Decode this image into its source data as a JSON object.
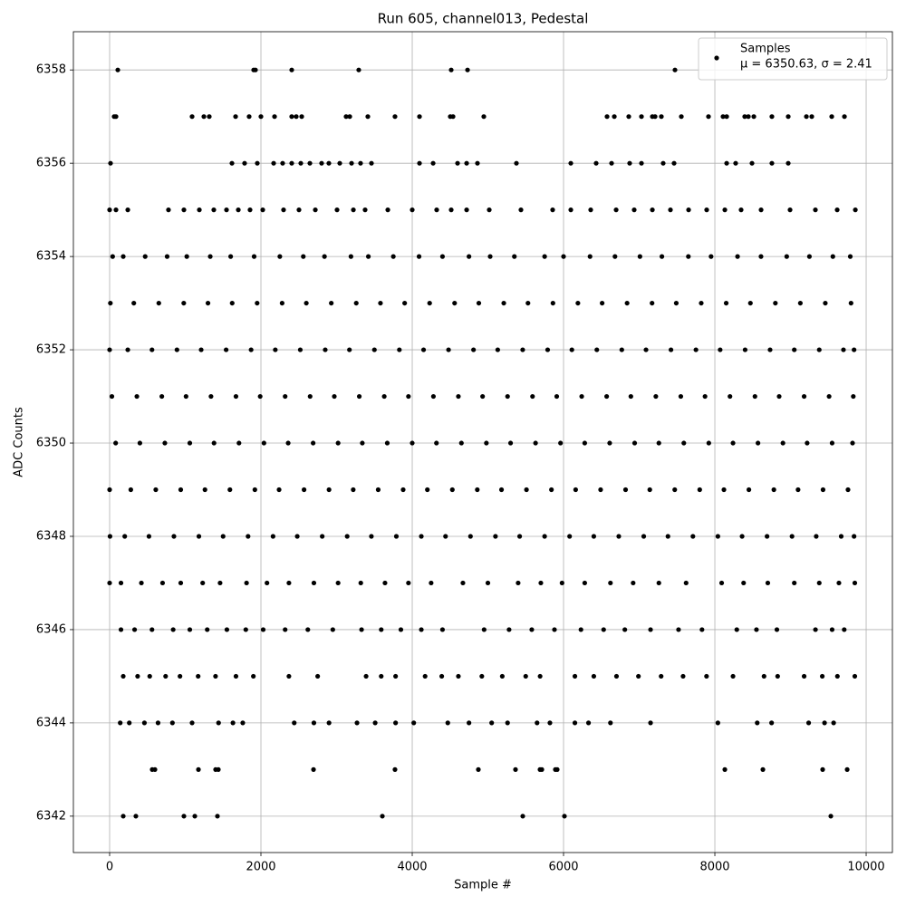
{
  "chart_data": {
    "type": "scatter",
    "title": "Run 605, channel013, Pedestal",
    "xlabel": "Sample #",
    "ylabel": "ADC Counts",
    "xlim": [
      -479,
      10347
    ],
    "ylim": [
      6341.22,
      6358.82
    ],
    "xticks": [
      0,
      2000,
      4000,
      6000,
      8000,
      10000
    ],
    "yticks": [
      6342,
      6344,
      6346,
      6348,
      6350,
      6352,
      6354,
      6356,
      6358
    ],
    "grid": true,
    "legend": "upper right",
    "legend_note": "μ = 6350.63, σ = 2.41",
    "series": [
      {
        "name": "Samples",
        "color": "#000000",
        "x": [
          108,
          1904,
          1928,
          2407,
          3293,
          4515,
          4731,
          7473,
          60,
          84,
          1090,
          1246,
          1317,
          1665,
          1844,
          2000,
          2180,
          2407,
          2467,
          2539,
          3126,
          3174,
          3413,
          3772,
          4096,
          4503,
          4539,
          4946,
          6575,
          6671,
          6862,
          7030,
          7174,
          7210,
          7293,
          7557,
          7916,
          8108,
          8156,
          8395,
          8443,
          8515,
          8754,
          8970,
          9210,
          9281,
          9545,
          9713,
          12,
          1617,
          1784,
          1952,
          2168,
          2287,
          2407,
          2527,
          2647,
          2802,
          2898,
          3042,
          3198,
          3317,
          3461,
          4096,
          4276,
          4599,
          4719,
          4862,
          5377,
          6096,
          6431,
          6635,
          6874,
          7030,
          7317,
          7461,
          8156,
          8275,
          8491,
          8754,
          8970,
          0,
          84,
          240,
          778,
          982,
          1186,
          1377,
          1545,
          1701,
          1856,
          2024,
          2299,
          2503,
          2719,
          3006,
          3222,
          3377,
          3677,
          4000,
          4323,
          4515,
          4719,
          5018,
          5437,
          5856,
          6096,
          6359,
          6695,
          6934,
          7174,
          7413,
          7653,
          7892,
          8132,
          8347,
          8611,
          8994,
          9329,
          9617,
          9857,
          40,
          180,
          470,
          760,
          1020,
          1330,
          1600,
          1910,
          2250,
          2560,
          2840,
          3190,
          3420,
          3750,
          4090,
          4400,
          4750,
          5030,
          5350,
          5750,
          6000,
          6350,
          6680,
          7010,
          7300,
          7650,
          7950,
          8300,
          8610,
          8950,
          9250,
          9560,
          9790,
          10,
          320,
          650,
          980,
          1300,
          1620,
          1950,
          2280,
          2600,
          2930,
          3260,
          3580,
          3900,
          4230,
          4560,
          4880,
          5210,
          5530,
          5860,
          6190,
          6510,
          6840,
          7170,
          7490,
          7820,
          8150,
          8470,
          8800,
          9130,
          9460,
          9800,
          0,
          240,
          560,
          890,
          1210,
          1540,
          1870,
          2190,
          2520,
          2850,
          3170,
          3500,
          3830,
          4150,
          4480,
          4810,
          5130,
          5460,
          5790,
          6110,
          6440,
          6770,
          7090,
          7420,
          7750,
          8070,
          8400,
          8730,
          9050,
          9380,
          9700,
          9840,
          30,
          360,
          690,
          1010,
          1340,
          1670,
          1990,
          2320,
          2650,
          2970,
          3300,
          3630,
          3950,
          4280,
          4610,
          4930,
          5260,
          5590,
          5910,
          6240,
          6570,
          6890,
          7220,
          7550,
          7870,
          8200,
          8530,
          8850,
          9180,
          9510,
          9830,
          80,
          400,
          730,
          1060,
          1380,
          1710,
          2040,
          2360,
          2690,
          3020,
          3340,
          3670,
          4000,
          4320,
          4650,
          4980,
          5300,
          5630,
          5960,
          6280,
          6610,
          6940,
          7260,
          7590,
          7920,
          8240,
          8570,
          8900,
          9220,
          9550,
          9820,
          0,
          280,
          610,
          940,
          1260,
          1590,
          1920,
          2240,
          2570,
          2900,
          3220,
          3550,
          3880,
          4200,
          4530,
          4860,
          5180,
          5510,
          5840,
          6160,
          6490,
          6820,
          7140,
          7470,
          7800,
          8120,
          8450,
          8780,
          9100,
          9430,
          9760,
          5,
          200,
          520,
          850,
          1180,
          1500,
          1830,
          2160,
          2480,
          2810,
          3140,
          3460,
          3790,
          4120,
          4440,
          4770,
          5100,
          5420,
          5750,
          6080,
          6400,
          6730,
          7060,
          7380,
          7710,
          8040,
          8360,
          8690,
          9020,
          9340,
          9670,
          9840,
          0,
          150,
          420,
          700,
          940,
          1230,
          1460,
          1810,
          2080,
          2370,
          2700,
          3020,
          3320,
          3640,
          3950,
          4250,
          4670,
          5000,
          5400,
          5700,
          5980,
          6280,
          6620,
          6920,
          7260,
          7620,
          8090,
          8380,
          8700,
          9050,
          9380,
          9640,
          9850,
          150,
          330,
          560,
          840,
          1060,
          1290,
          1550,
          1800,
          2030,
          2320,
          2620,
          2950,
          3330,
          3590,
          3850,
          4120,
          4400,
          4950,
          5280,
          5580,
          5880,
          6230,
          6530,
          6810,
          7150,
          7520,
          7830,
          8290,
          8550,
          8820,
          9330,
          9550,
          9710,
          180,
          370,
          530,
          740,
          930,
          1170,
          1400,
          1670,
          1900,
          2370,
          2750,
          3390,
          3590,
          3780,
          4170,
          4390,
          4610,
          4920,
          5190,
          5500,
          5690,
          6150,
          6400,
          6700,
          6990,
          7290,
          7580,
          7890,
          8240,
          8650,
          8830,
          9180,
          9420,
          9620,
          9850,
          140,
          260,
          460,
          640,
          830,
          1090,
          1440,
          1630,
          1760,
          2440,
          2700,
          2900,
          3270,
          3510,
          3780,
          4020,
          4470,
          4750,
          5050,
          5260,
          5650,
          5820,
          6150,
          6330,
          6620,
          7150,
          8040,
          8560,
          8750,
          9240,
          9450,
          9570,
          563,
          599,
          1174,
          1401,
          1437,
          2695,
          3772,
          4874,
          5365,
          5689,
          5713,
          5892,
          5916,
          8132,
          8635,
          9425,
          9749,
          180,
          347,
          982,
          1126,
          1425,
          3605,
          5461,
          6012,
          9533
        ],
        "values": [
          6358,
          6358,
          6358,
          6358,
          6358,
          6358,
          6358,
          6358,
          6357,
          6357,
          6357,
          6357,
          6357,
          6357,
          6357,
          6357,
          6357,
          6357,
          6357,
          6357,
          6357,
          6357,
          6357,
          6357,
          6357,
          6357,
          6357,
          6357,
          6357,
          6357,
          6357,
          6357,
          6357,
          6357,
          6357,
          6357,
          6357,
          6357,
          6357,
          6357,
          6357,
          6357,
          6357,
          6357,
          6357,
          6357,
          6357,
          6357,
          6356,
          6356,
          6356,
          6356,
          6356,
          6356,
          6356,
          6356,
          6356,
          6356,
          6356,
          6356,
          6356,
          6356,
          6356,
          6356,
          6356,
          6356,
          6356,
          6356,
          6356,
          6356,
          6356,
          6356,
          6356,
          6356,
          6356,
          6356,
          6356,
          6356,
          6356,
          6356,
          6356,
          6355,
          6355,
          6355,
          6355,
          6355,
          6355,
          6355,
          6355,
          6355,
          6355,
          6355,
          6355,
          6355,
          6355,
          6355,
          6355,
          6355,
          6355,
          6355,
          6355,
          6355,
          6355,
          6355,
          6355,
          6355,
          6355,
          6355,
          6355,
          6355,
          6355,
          6355,
          6355,
          6355,
          6355,
          6355,
          6355,
          6355,
          6355,
          6355,
          6355,
          6354,
          6354,
          6354,
          6354,
          6354,
          6354,
          6354,
          6354,
          6354,
          6354,
          6354,
          6354,
          6354,
          6354,
          6354,
          6354,
          6354,
          6354,
          6354,
          6354,
          6354,
          6354,
          6354,
          6354,
          6354,
          6354,
          6354,
          6354,
          6354,
          6354,
          6354,
          6354,
          6354,
          6353,
          6353,
          6353,
          6353,
          6353,
          6353,
          6353,
          6353,
          6353,
          6353,
          6353,
          6353,
          6353,
          6353,
          6353,
          6353,
          6353,
          6353,
          6353,
          6353,
          6353,
          6353,
          6353,
          6353,
          6353,
          6353,
          6353,
          6353,
          6353,
          6353,
          6353,
          6352,
          6352,
          6352,
          6352,
          6352,
          6352,
          6352,
          6352,
          6352,
          6352,
          6352,
          6352,
          6352,
          6352,
          6352,
          6352,
          6352,
          6352,
          6352,
          6352,
          6352,
          6352,
          6352,
          6352,
          6352,
          6352,
          6352,
          6352,
          6352,
          6352,
          6352,
          6352,
          6351,
          6351,
          6351,
          6351,
          6351,
          6351,
          6351,
          6351,
          6351,
          6351,
          6351,
          6351,
          6351,
          6351,
          6351,
          6351,
          6351,
          6351,
          6351,
          6351,
          6351,
          6351,
          6351,
          6351,
          6351,
          6351,
          6351,
          6351,
          6351,
          6351,
          6351,
          6350,
          6350,
          6350,
          6350,
          6350,
          6350,
          6350,
          6350,
          6350,
          6350,
          6350,
          6350,
          6350,
          6350,
          6350,
          6350,
          6350,
          6350,
          6350,
          6350,
          6350,
          6350,
          6350,
          6350,
          6350,
          6350,
          6350,
          6350,
          6350,
          6350,
          6350,
          6349,
          6349,
          6349,
          6349,
          6349,
          6349,
          6349,
          6349,
          6349,
          6349,
          6349,
          6349,
          6349,
          6349,
          6349,
          6349,
          6349,
          6349,
          6349,
          6349,
          6349,
          6349,
          6349,
          6349,
          6349,
          6349,
          6349,
          6349,
          6349,
          6349,
          6349,
          6348,
          6348,
          6348,
          6348,
          6348,
          6348,
          6348,
          6348,
          6348,
          6348,
          6348,
          6348,
          6348,
          6348,
          6348,
          6348,
          6348,
          6348,
          6348,
          6348,
          6348,
          6348,
          6348,
          6348,
          6348,
          6348,
          6348,
          6348,
          6348,
          6348,
          6348,
          6348,
          6347,
          6347,
          6347,
          6347,
          6347,
          6347,
          6347,
          6347,
          6347,
          6347,
          6347,
          6347,
          6347,
          6347,
          6347,
          6347,
          6347,
          6347,
          6347,
          6347,
          6347,
          6347,
          6347,
          6347,
          6347,
          6347,
          6347,
          6347,
          6347,
          6347,
          6347,
          6347,
          6347,
          6346,
          6346,
          6346,
          6346,
          6346,
          6346,
          6346,
          6346,
          6346,
          6346,
          6346,
          6346,
          6346,
          6346,
          6346,
          6346,
          6346,
          6346,
          6346,
          6346,
          6346,
          6346,
          6346,
          6346,
          6346,
          6346,
          6346,
          6346,
          6346,
          6346,
          6346,
          6346,
          6346,
          6345,
          6345,
          6345,
          6345,
          6345,
          6345,
          6345,
          6345,
          6345,
          6345,
          6345,
          6345,
          6345,
          6345,
          6345,
          6345,
          6345,
          6345,
          6345,
          6345,
          6345,
          6345,
          6345,
          6345,
          6345,
          6345,
          6345,
          6345,
          6345,
          6345,
          6345,
          6345,
          6345,
          6345,
          6345,
          6344,
          6344,
          6344,
          6344,
          6344,
          6344,
          6344,
          6344,
          6344,
          6344,
          6344,
          6344,
          6344,
          6344,
          6344,
          6344,
          6344,
          6344,
          6344,
          6344,
          6344,
          6344,
          6344,
          6344,
          6344,
          6344,
          6344,
          6344,
          6344,
          6344,
          6344,
          6344,
          6343,
          6343,
          6343,
          6343,
          6343,
          6343,
          6343,
          6343,
          6343,
          6343,
          6343,
          6343,
          6343,
          6343,
          6343,
          6343,
          6343,
          6342,
          6342,
          6342,
          6342,
          6342,
          6342,
          6342,
          6342,
          6342
        ]
      }
    ]
  }
}
